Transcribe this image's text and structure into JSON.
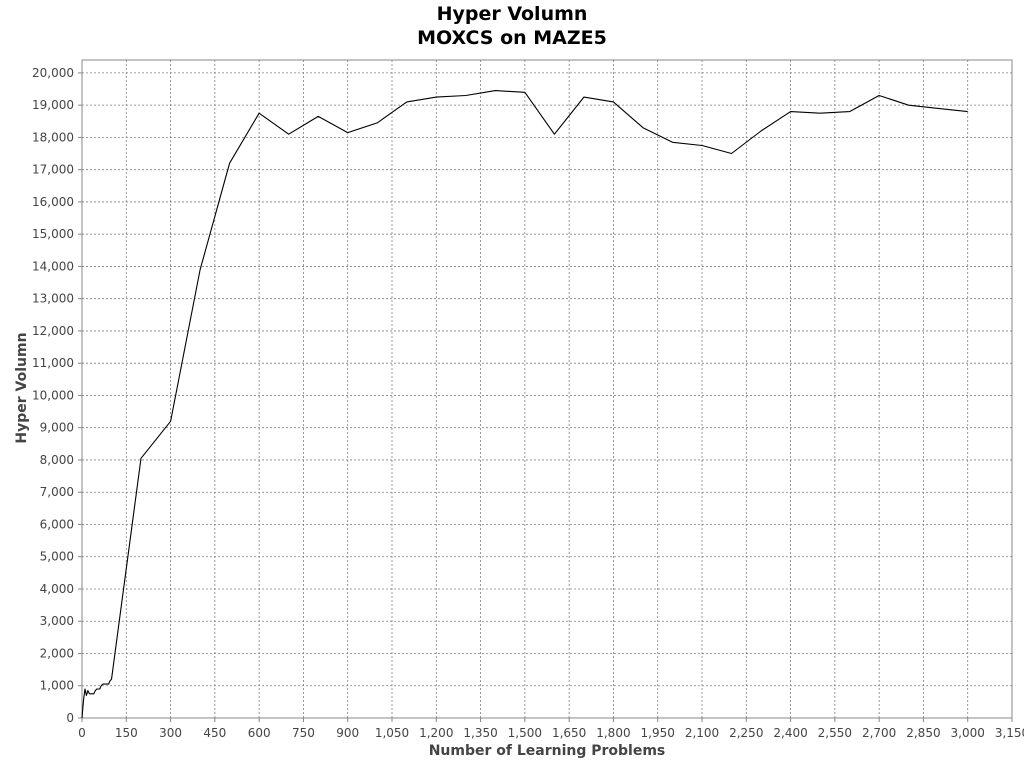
{
  "chart_data": {
    "type": "line",
    "title": "Hyper Volumn",
    "subtitle": "MOXCS on MAZE5",
    "xlabel": "Number of Learning Problems",
    "ylabel": "Hyper Volumn",
    "xlim": [
      0,
      3150
    ],
    "ylim": [
      0,
      20400
    ],
    "xticks": [
      0,
      150,
      300,
      450,
      600,
      750,
      900,
      1050,
      1200,
      1350,
      1500,
      1650,
      1800,
      1950,
      2100,
      2250,
      2400,
      2550,
      2700,
      2850,
      3000,
      3150
    ],
    "xtick_labels": [
      "0",
      "150",
      "300",
      "450",
      "600",
      "750",
      "900",
      "1,050",
      "1,200",
      "1,350",
      "1,500",
      "1,650",
      "1,800",
      "1,950",
      "2,100",
      "2,250",
      "2,400",
      "2,550",
      "2,700",
      "2,850",
      "3,000",
      "3,150"
    ],
    "yticks": [
      0,
      1000,
      2000,
      3000,
      4000,
      5000,
      6000,
      7000,
      8000,
      9000,
      10000,
      11000,
      12000,
      13000,
      14000,
      15000,
      16000,
      17000,
      18000,
      19000,
      20000
    ],
    "ytick_labels": [
      "0",
      "1,000",
      "2,000",
      "3,000",
      "4,000",
      "5,000",
      "6,000",
      "7,000",
      "8,000",
      "9,000",
      "10,000",
      "11,000",
      "12,000",
      "13,000",
      "14,000",
      "15,000",
      "16,000",
      "17,000",
      "18,000",
      "19,000",
      "20,000"
    ],
    "grid": true,
    "series": [
      {
        "color": "#000000",
        "x": [
          0,
          5,
          10,
          15,
          20,
          25,
          30,
          35,
          40,
          45,
          50,
          55,
          60,
          65,
          70,
          75,
          80,
          85,
          90,
          95,
          100,
          200,
          300,
          400,
          500,
          600,
          700,
          800,
          900,
          1000,
          1100,
          1200,
          1300,
          1400,
          1500,
          1600,
          1700,
          1800,
          1900,
          2000,
          2100,
          2200,
          2300,
          2400,
          2500,
          2600,
          2700,
          2800,
          2900,
          3000
        ],
        "y": [
          0,
          550,
          900,
          700,
          850,
          750,
          750,
          750,
          750,
          850,
          900,
          900,
          900,
          1000,
          1050,
          1050,
          1050,
          1050,
          1050,
          1150,
          1200,
          8050,
          9200,
          13900,
          17200,
          18750,
          18100,
          18650,
          18150,
          18450,
          19100,
          19250,
          19300,
          19450,
          19400,
          18100,
          19250,
          19100,
          18300,
          17850,
          17750,
          17500,
          18200,
          18800,
          18750,
          18800,
          19300,
          19000,
          18900,
          18800
        ]
      }
    ]
  }
}
